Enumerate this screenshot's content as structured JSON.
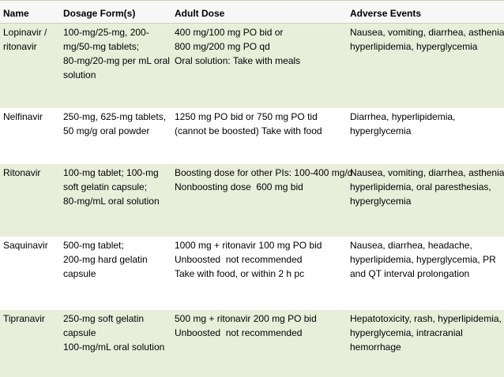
{
  "table": {
    "header": [
      "Name",
      "Dosage Form(s)",
      "Adult Dose",
      "Adverse Events"
    ],
    "rows": [
      [
        [
          "Lopinavir /",
          "ritonavir"
        ],
        [
          "100-mg/25-mg, 200-",
          "mg/50-mg tablets;",
          "80-mg/20-mg per mL oral",
          "solution"
        ],
        [
          "400 mg/100 mg PO bid or",
          "800 mg/200 mg PO qd",
          "Oral solution: Take with meals"
        ],
        [
          "Nausea, vomiting, diarrhea, asthenia,",
          "hyperlipidemia, hyperglycemia"
        ]
      ],
      [
        [
          "Nelfinavir"
        ],
        [
          "250-mg, 625-mg tablets,",
          "50 mg/g oral powder"
        ],
        [
          "1250 mg PO bid or 750 mg PO tid",
          "(cannot be boosted) Take with food"
        ],
        [
          "Diarrhea, hyperlipidemia,",
          "hyperglycemia"
        ]
      ],
      [
        [
          "Ritonavir"
        ],
        [
          "100-mg tablet; 100-mg",
          "soft gelatin capsule;",
          "80-mg/mL oral solution"
        ],
        [
          "Boosting dose for other PIs: 100-400 mg/d",
          "Nonboosting dose  600 mg bid"
        ],
        [
          "Nausea, vomiting, diarrhea, asthenia,",
          "hyperlipidemia, oral paresthesias,",
          "hyperglycemia"
        ]
      ],
      [
        [
          "Saquinavir"
        ],
        [
          "500-mg tablet;",
          "200-mg hard gelatin",
          "capsule"
        ],
        [
          "1000 mg + ritonavir 100 mg PO bid",
          "Unboosted  not recommended",
          "Take with food, or within 2 h pc"
        ],
        [
          "Nausea, diarrhea, headache,",
          "hyperlipidemia, hyperglycemia, PR",
          "and QT interval prolongation"
        ]
      ],
      [
        [
          "Tipranavir"
        ],
        [
          "250-mg soft gelatin",
          "capsule",
          "100-mg/mL oral solution"
        ],
        [
          "500 mg + ritonavir 200 mg PO bid",
          "Unboosted  not recommended"
        ],
        [
          "Hepatotoxicity, rash, hyperlipidemia,",
          "hyperglycemia, intracranial",
          "hemorrhage"
        ]
      ]
    ]
  }
}
